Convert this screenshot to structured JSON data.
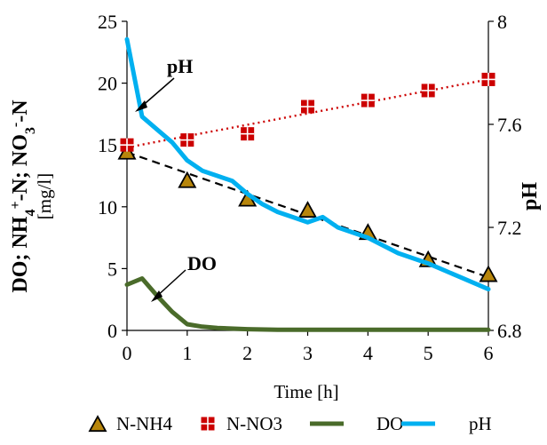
{
  "chart_data": {
    "type": "line",
    "xlabel": "Time [h]",
    "ylabel_left": {
      "line1_parts": [
        "DO; NH",
        "4",
        "+",
        "-N;  NO",
        "3",
        "-",
        "-N"
      ],
      "line2": "[mg/l]"
    },
    "ylabel_right": "pH",
    "x_ticks": [
      "0",
      "1",
      "2",
      "3",
      "4",
      "5",
      "6"
    ],
    "y_left_ticks": [
      "0",
      "5",
      "10",
      "15",
      "20",
      "25"
    ],
    "y_right_ticks": [
      "6.8",
      "7.2",
      "7.6",
      "8"
    ],
    "xlim": [
      0,
      6
    ],
    "ylim_left": [
      0,
      25
    ],
    "ylim_right": [
      6.8,
      8.0
    ],
    "annotations": [
      {
        "text": "pH",
        "points_to": [
          0.18,
          7.93
        ]
      },
      {
        "text": "DO",
        "points_to": [
          0.45,
          3.1
        ]
      }
    ],
    "series": [
      {
        "name": "N-NH4",
        "axis": "left",
        "style": "markers+trend",
        "marker": "triangle",
        "color": "#b8860b",
        "x": [
          0,
          1,
          2,
          3,
          4,
          5,
          6
        ],
        "y": [
          14.4,
          12.1,
          10.6,
          9.7,
          7.9,
          5.7,
          4.5
        ],
        "trend": [
          14.4,
          4.3
        ]
      },
      {
        "name": "N-NO3",
        "axis": "left",
        "style": "markers+trend",
        "marker": "square-cross",
        "color": "#cc0000",
        "x": [
          0,
          1,
          2,
          3,
          4,
          5,
          6
        ],
        "y": [
          15.0,
          15.4,
          15.9,
          18.1,
          18.6,
          19.4,
          20.3
        ],
        "trend": [
          14.8,
          20.3
        ]
      },
      {
        "name": "DO",
        "axis": "left",
        "style": "line",
        "color": "#4a6b2a",
        "x": [
          0,
          0.25,
          0.5,
          0.75,
          1.0,
          1.25,
          1.5,
          2.0,
          2.5,
          3.0,
          4.0,
          5.0,
          6.0
        ],
        "y": [
          3.7,
          4.2,
          2.8,
          1.5,
          0.5,
          0.3,
          0.2,
          0.1,
          0.05,
          0.05,
          0.05,
          0.05,
          0.05
        ]
      },
      {
        "name": "pH",
        "axis": "right",
        "style": "line",
        "color": "#00b0f0",
        "x": [
          0,
          0.25,
          0.5,
          0.75,
          1.0,
          1.25,
          1.5,
          1.75,
          2.0,
          2.25,
          2.5,
          2.75,
          3.0,
          3.25,
          3.5,
          4.0,
          4.5,
          5.0,
          5.5,
          6.0
        ],
        "y": [
          7.93,
          7.63,
          7.58,
          7.53,
          7.46,
          7.42,
          7.4,
          7.38,
          7.33,
          7.29,
          7.26,
          7.24,
          7.22,
          7.24,
          7.2,
          7.16,
          7.1,
          7.06,
          7.01,
          6.96
        ]
      }
    ],
    "legend": [
      {
        "label": "N-NH4",
        "kind": "triangle",
        "color": "#b8860b"
      },
      {
        "label": "N-NO3",
        "kind": "square-cross",
        "color": "#cc0000"
      },
      {
        "label": "DO",
        "kind": "line",
        "color": "#4a6b2a"
      },
      {
        "label": "pH",
        "kind": "line",
        "color": "#00b0f0"
      }
    ]
  }
}
